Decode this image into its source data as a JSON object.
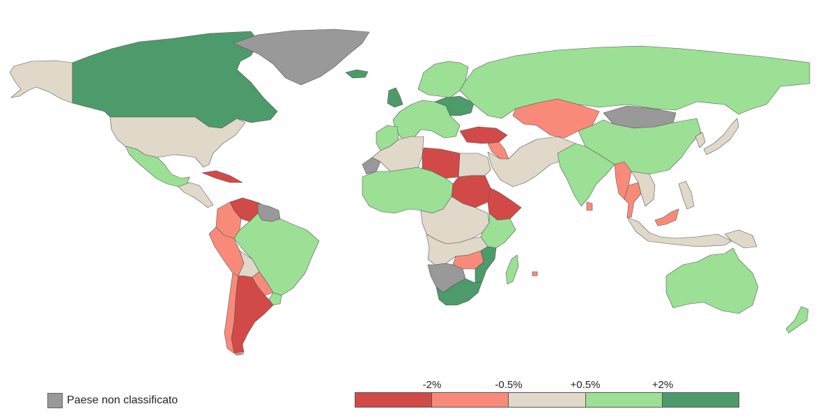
{
  "colors": {
    "strong_decline": "#d24a48",
    "decline": "#f98a7a",
    "stable": "#e0d8c8",
    "growth": "#9be095",
    "strong_growth": "#4d9a6b",
    "unclassified": "#999999"
  },
  "legend": {
    "unclassified_label": "Paese non classificato",
    "ticks": [
      "-2%",
      "-0.5%",
      "+0.5%",
      "+2%"
    ],
    "classes": [
      "strong_decline",
      "decline",
      "stable",
      "growth",
      "strong_growth"
    ]
  },
  "regions": [
    {
      "name": "alaska",
      "class": "stable"
    },
    {
      "name": "canada",
      "class": "strong_growth"
    },
    {
      "name": "greenland",
      "class": "unclassified"
    },
    {
      "name": "iceland",
      "class": "strong_growth"
    },
    {
      "name": "united-states",
      "class": "stable"
    },
    {
      "name": "mexico",
      "class": "growth"
    },
    {
      "name": "central-america",
      "class": "stable"
    },
    {
      "name": "cuba",
      "class": "strong_decline"
    },
    {
      "name": "venezuela",
      "class": "strong_decline"
    },
    {
      "name": "colombia",
      "class": "decline"
    },
    {
      "name": "guianas",
      "class": "unclassified"
    },
    {
      "name": "peru",
      "class": "decline"
    },
    {
      "name": "brazil",
      "class": "growth"
    },
    {
      "name": "bolivia",
      "class": "stable"
    },
    {
      "name": "chile",
      "class": "decline"
    },
    {
      "name": "paraguay",
      "class": "decline"
    },
    {
      "name": "argentina",
      "class": "strong_decline"
    },
    {
      "name": "uruguay",
      "class": "growth"
    },
    {
      "name": "uk",
      "class": "strong_growth"
    },
    {
      "name": "western-europe",
      "class": "growth"
    },
    {
      "name": "central-europe",
      "class": "strong_growth"
    },
    {
      "name": "scandinavia",
      "class": "growth"
    },
    {
      "name": "russia",
      "class": "growth"
    },
    {
      "name": "kazakhstan",
      "class": "decline"
    },
    {
      "name": "mongolia",
      "class": "unclassified"
    },
    {
      "name": "china",
      "class": "growth"
    },
    {
      "name": "turkey",
      "class": "strong_decline"
    },
    {
      "name": "syria",
      "class": "decline"
    },
    {
      "name": "middle-east",
      "class": "stable"
    },
    {
      "name": "india",
      "class": "growth"
    },
    {
      "name": "sri-lanka",
      "class": "decline"
    },
    {
      "name": "myanmar",
      "class": "decline"
    },
    {
      "name": "thailand",
      "class": "decline"
    },
    {
      "name": "indochina",
      "class": "stable"
    },
    {
      "name": "japan",
      "class": "stable"
    },
    {
      "name": "korea",
      "class": "stable"
    },
    {
      "name": "indonesia",
      "class": "stable"
    },
    {
      "name": "malaysia",
      "class": "decline"
    },
    {
      "name": "philippines",
      "class": "stable"
    },
    {
      "name": "papua-new-guinea",
      "class": "stable"
    },
    {
      "name": "australia",
      "class": "growth"
    },
    {
      "name": "new-zealand",
      "class": "growth"
    },
    {
      "name": "north-africa",
      "class": "stable"
    },
    {
      "name": "morocco",
      "class": "growth"
    },
    {
      "name": "western-sahara",
      "class": "unclassified"
    },
    {
      "name": "libya",
      "class": "strong_decline"
    },
    {
      "name": "egypt",
      "class": "stable"
    },
    {
      "name": "sudan",
      "class": "strong_decline"
    },
    {
      "name": "ethiopia",
      "class": "strong_decline"
    },
    {
      "name": "west-africa",
      "class": "growth"
    },
    {
      "name": "central-africa",
      "class": "stable"
    },
    {
      "name": "east-africa",
      "class": "growth"
    },
    {
      "name": "southern-africa",
      "class": "stable"
    },
    {
      "name": "zambia-zimbabwe",
      "class": "decline"
    },
    {
      "name": "mozambique",
      "class": "strong_growth"
    },
    {
      "name": "namibia-botswana",
      "class": "unclassified"
    },
    {
      "name": "south-africa",
      "class": "strong_growth"
    },
    {
      "name": "madagascar",
      "class": "growth"
    },
    {
      "name": "mauritius",
      "class": "decline"
    }
  ]
}
